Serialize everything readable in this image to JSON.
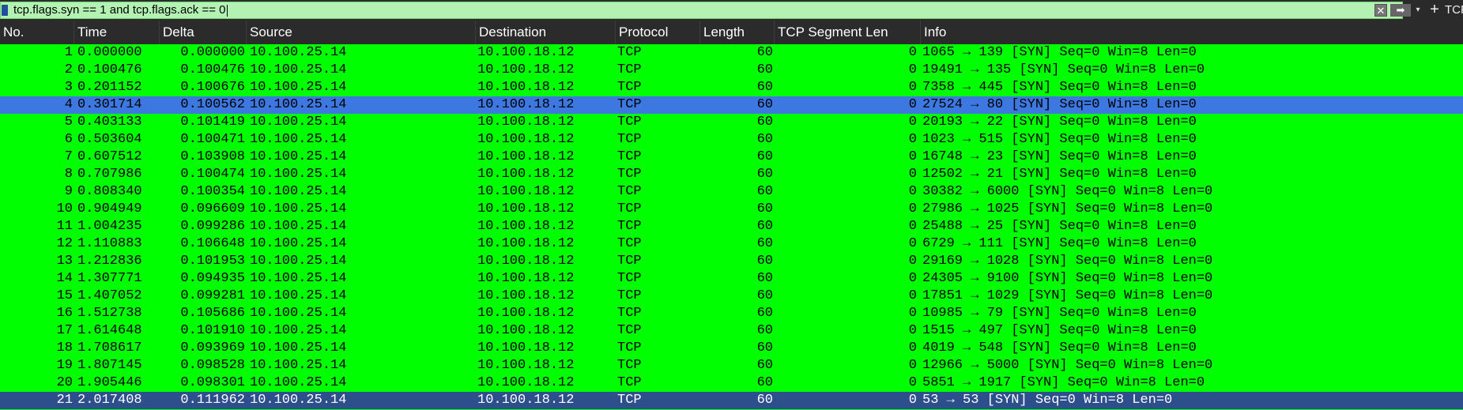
{
  "filter": {
    "expression": "tcp.flags.syn == 1 and tcp.flags.ack == 0",
    "clear_glyph": "✕",
    "apply_glyph": "➡",
    "dropdown_glyph": "▾",
    "add_glyph": "+",
    "right_label": "TCP"
  },
  "columns": [
    "No.",
    "Time",
    "Delta",
    "Source",
    "Destination",
    "Protocol",
    "Length",
    "TCP Segment Len",
    "Info"
  ],
  "colors": {
    "row_green": "#00ff00",
    "selected": "#3d78e0",
    "focused": "#2d4f8c",
    "header_bg": "#2b2b2b"
  },
  "rows": [
    {
      "no": "1",
      "time": "0.000000",
      "delta": "0.000000",
      "src": "10.100.25.14",
      "dst": "10.100.18.12",
      "proto": "TCP",
      "len": "60",
      "seg": "0",
      "info": "1065 → 139 [SYN] Seq=0 Win=8 Len=0"
    },
    {
      "no": "2",
      "time": "0.100476",
      "delta": "0.100476",
      "src": "10.100.25.14",
      "dst": "10.100.18.12",
      "proto": "TCP",
      "len": "60",
      "seg": "0",
      "info": "19491 → 135 [SYN] Seq=0 Win=8 Len=0"
    },
    {
      "no": "3",
      "time": "0.201152",
      "delta": "0.100676",
      "src": "10.100.25.14",
      "dst": "10.100.18.12",
      "proto": "TCP",
      "len": "60",
      "seg": "0",
      "info": "7358 → 445 [SYN] Seq=0 Win=8 Len=0"
    },
    {
      "no": "4",
      "time": "0.301714",
      "delta": "0.100562",
      "src": "10.100.25.14",
      "dst": "10.100.18.12",
      "proto": "TCP",
      "len": "60",
      "seg": "0",
      "info": "27524 → 80 [SYN] Seq=0 Win=8 Len=0",
      "state": "selected"
    },
    {
      "no": "5",
      "time": "0.403133",
      "delta": "0.101419",
      "src": "10.100.25.14",
      "dst": "10.100.18.12",
      "proto": "TCP",
      "len": "60",
      "seg": "0",
      "info": "20193 → 22 [SYN] Seq=0 Win=8 Len=0"
    },
    {
      "no": "6",
      "time": "0.503604",
      "delta": "0.100471",
      "src": "10.100.25.14",
      "dst": "10.100.18.12",
      "proto": "TCP",
      "len": "60",
      "seg": "0",
      "info": "1023 → 515 [SYN] Seq=0 Win=8 Len=0"
    },
    {
      "no": "7",
      "time": "0.607512",
      "delta": "0.103908",
      "src": "10.100.25.14",
      "dst": "10.100.18.12",
      "proto": "TCP",
      "len": "60",
      "seg": "0",
      "info": "16748 → 23 [SYN] Seq=0 Win=8 Len=0"
    },
    {
      "no": "8",
      "time": "0.707986",
      "delta": "0.100474",
      "src": "10.100.25.14",
      "dst": "10.100.18.12",
      "proto": "TCP",
      "len": "60",
      "seg": "0",
      "info": "12502 → 21 [SYN] Seq=0 Win=8 Len=0"
    },
    {
      "no": "9",
      "time": "0.808340",
      "delta": "0.100354",
      "src": "10.100.25.14",
      "dst": "10.100.18.12",
      "proto": "TCP",
      "len": "60",
      "seg": "0",
      "info": "30382 → 6000 [SYN] Seq=0 Win=8 Len=0"
    },
    {
      "no": "10",
      "time": "0.904949",
      "delta": "0.096609",
      "src": "10.100.25.14",
      "dst": "10.100.18.12",
      "proto": "TCP",
      "len": "60",
      "seg": "0",
      "info": "27986 → 1025 [SYN] Seq=0 Win=8 Len=0"
    },
    {
      "no": "11",
      "time": "1.004235",
      "delta": "0.099286",
      "src": "10.100.25.14",
      "dst": "10.100.18.12",
      "proto": "TCP",
      "len": "60",
      "seg": "0",
      "info": "25488 → 25 [SYN] Seq=0 Win=8 Len=0"
    },
    {
      "no": "12",
      "time": "1.110883",
      "delta": "0.106648",
      "src": "10.100.25.14",
      "dst": "10.100.18.12",
      "proto": "TCP",
      "len": "60",
      "seg": "0",
      "info": "6729 → 111 [SYN] Seq=0 Win=8 Len=0"
    },
    {
      "no": "13",
      "time": "1.212836",
      "delta": "0.101953",
      "src": "10.100.25.14",
      "dst": "10.100.18.12",
      "proto": "TCP",
      "len": "60",
      "seg": "0",
      "info": "29169 → 1028 [SYN] Seq=0 Win=8 Len=0"
    },
    {
      "no": "14",
      "time": "1.307771",
      "delta": "0.094935",
      "src": "10.100.25.14",
      "dst": "10.100.18.12",
      "proto": "TCP",
      "len": "60",
      "seg": "0",
      "info": "24305 → 9100 [SYN] Seq=0 Win=8 Len=0"
    },
    {
      "no": "15",
      "time": "1.407052",
      "delta": "0.099281",
      "src": "10.100.25.14",
      "dst": "10.100.18.12",
      "proto": "TCP",
      "len": "60",
      "seg": "0",
      "info": "17851 → 1029 [SYN] Seq=0 Win=8 Len=0"
    },
    {
      "no": "16",
      "time": "1.512738",
      "delta": "0.105686",
      "src": "10.100.25.14",
      "dst": "10.100.18.12",
      "proto": "TCP",
      "len": "60",
      "seg": "0",
      "info": "10985 → 79 [SYN] Seq=0 Win=8 Len=0"
    },
    {
      "no": "17",
      "time": "1.614648",
      "delta": "0.101910",
      "src": "10.100.25.14",
      "dst": "10.100.18.12",
      "proto": "TCP",
      "len": "60",
      "seg": "0",
      "info": "1515 → 497 [SYN] Seq=0 Win=8 Len=0"
    },
    {
      "no": "18",
      "time": "1.708617",
      "delta": "0.093969",
      "src": "10.100.25.14",
      "dst": "10.100.18.12",
      "proto": "TCP",
      "len": "60",
      "seg": "0",
      "info": "4019 → 548 [SYN] Seq=0 Win=8 Len=0"
    },
    {
      "no": "19",
      "time": "1.807145",
      "delta": "0.098528",
      "src": "10.100.25.14",
      "dst": "10.100.18.12",
      "proto": "TCP",
      "len": "60",
      "seg": "0",
      "info": "12966 → 5000 [SYN] Seq=0 Win=8 Len=0"
    },
    {
      "no": "20",
      "time": "1.905446",
      "delta": "0.098301",
      "src": "10.100.25.14",
      "dst": "10.100.18.12",
      "proto": "TCP",
      "len": "60",
      "seg": "0",
      "info": "5851 → 1917 [SYN] Seq=0 Win=8 Len=0"
    },
    {
      "no": "21",
      "time": "2.017408",
      "delta": "0.111962",
      "src": "10.100.25.14",
      "dst": "10.100.18.12",
      "proto": "TCP",
      "len": "60",
      "seg": "0",
      "info": "53 → 53 [SYN] Seq=0 Win=8 Len=0",
      "state": "focused"
    }
  ]
}
